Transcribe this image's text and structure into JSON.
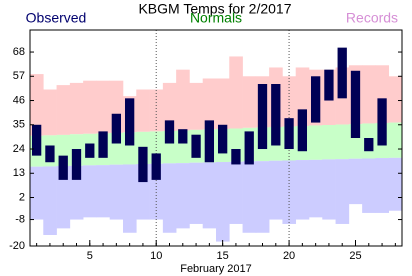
{
  "chart_data": {
    "type": "range_bar",
    "title": "KBGM Temps for 2/2017",
    "xlabel": "February 2017",
    "x": [
      1,
      2,
      3,
      4,
      5,
      6,
      7,
      8,
      9,
      10,
      11,
      12,
      13,
      14,
      15,
      16,
      17,
      18,
      19,
      20,
      21,
      22,
      23,
      24,
      25,
      26,
      27,
      28
    ],
    "xlim": [
      0.5,
      28.5
    ],
    "xticks": [
      5,
      10,
      15,
      20,
      25
    ],
    "vlines": [
      10,
      20
    ],
    "ylim": [
      -20,
      78
    ],
    "yticks": [
      68,
      57,
      46,
      35,
      24,
      13,
      2,
      -8,
      -20
    ],
    "series": [
      {
        "name": "Observed",
        "color": "#00006e",
        "fill": "#000055",
        "high": [
          35,
          25.6,
          21,
          24,
          26.5,
          32,
          40,
          47,
          25,
          22,
          37,
          33,
          30.5,
          37,
          35,
          24,
          32,
          53.5,
          53.5,
          38,
          42,
          57,
          60,
          70,
          59.5,
          29,
          47,
          null
        ],
        "low": [
          21,
          18,
          10,
          10,
          20,
          20,
          26.5,
          25.6,
          9,
          10,
          26.5,
          26.5,
          20,
          18,
          22,
          17,
          17,
          24,
          25.6,
          24,
          23,
          36,
          46,
          47,
          29,
          23,
          25.6,
          null
        ]
      },
      {
        "name": "Normals",
        "color": "#008000",
        "fill": "#c8ffc8",
        "high": [
          30,
          30.2,
          30.4,
          30.7,
          30.9,
          31.1,
          31.3,
          31.6,
          31.8,
          32,
          32.2,
          32.4,
          32.7,
          32.9,
          33.1,
          33.3,
          33.6,
          33.8,
          34,
          34.2,
          34.4,
          34.7,
          34.9,
          35.1,
          35.3,
          35.6,
          35.8,
          36
        ],
        "low": [
          16,
          16.1,
          16.3,
          16.4,
          16.6,
          16.7,
          16.9,
          17,
          17.2,
          17.3,
          17.5,
          17.6,
          17.8,
          17.9,
          18.1,
          18.2,
          18.4,
          18.5,
          18.7,
          18.8,
          19,
          19.1,
          19.3,
          19.4,
          19.6,
          19.7,
          19.9,
          20
        ]
      },
      {
        "name": "Records",
        "color": "#d68fd6",
        "fill": "#ffcccc",
        "fill_low": "#ccccff",
        "high": [
          58,
          51,
          53,
          54,
          55,
          55,
          55,
          48,
          51,
          51,
          54,
          60,
          54,
          56,
          56,
          66,
          57,
          57,
          61,
          57,
          61,
          60,
          60,
          61,
          62,
          62,
          62,
          57
        ],
        "low": [
          -8,
          -15,
          -12,
          -8,
          -7,
          -7,
          -8,
          -14,
          -8,
          -8,
          -14,
          -12,
          -10,
          -12,
          -18,
          -10,
          -14,
          -14,
          -8,
          -10,
          -8,
          -7,
          -8,
          -10,
          -1,
          -5,
          -5,
          -4
        ]
      }
    ]
  }
}
